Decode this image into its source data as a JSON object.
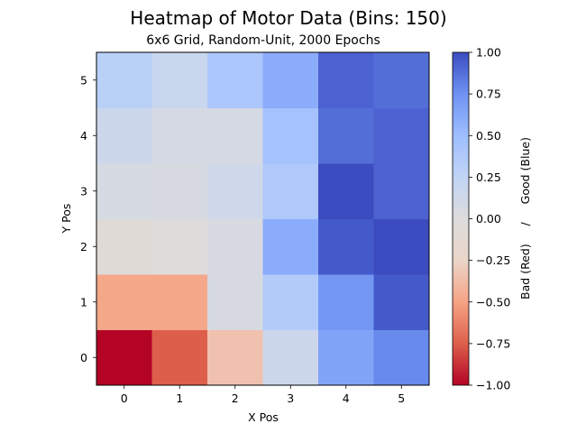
{
  "chart_data": {
    "type": "heatmap",
    "title": "Heatmap of Motor Data (Bins: 150)",
    "subtitle": "6x6 Grid, Random-Unit, 2000 Epochs",
    "xlabel": "X Pos",
    "ylabel": "Y Pos",
    "x_ticks": [
      "0",
      "1",
      "2",
      "3",
      "4",
      "5"
    ],
    "y_ticks": [
      "0",
      "1",
      "2",
      "3",
      "4",
      "5"
    ],
    "colormap": "coolwarm",
    "vmin": -1.0,
    "vmax": 1.0,
    "colorbar_label": "Bad (Red)     /     Good (Blue)",
    "colorbar_ticks": [
      "1.00",
      "0.75",
      "0.50",
      "0.25",
      "0.00",
      "−0.25",
      "−0.50",
      "−0.75",
      "−1.00"
    ],
    "colorbar_tick_values": [
      1.0,
      0.75,
      0.5,
      0.25,
      0.0,
      -0.25,
      -0.5,
      -0.75,
      -1.0
    ],
    "values": [
      [
        -1.0,
        -0.75,
        -0.35,
        0.15,
        0.65,
        0.78
      ],
      [
        -0.48,
        -0.48,
        0.05,
        0.35,
        0.72,
        0.95
      ],
      [
        -0.06,
        -0.02,
        0.05,
        0.6,
        0.95,
        1.0
      ],
      [
        0.06,
        0.05,
        0.12,
        0.38,
        1.0,
        0.92
      ],
      [
        0.15,
        0.08,
        0.08,
        0.45,
        0.88,
        0.92
      ],
      [
        0.3,
        0.18,
        0.4,
        0.6,
        0.92,
        0.88
      ]
    ]
  }
}
